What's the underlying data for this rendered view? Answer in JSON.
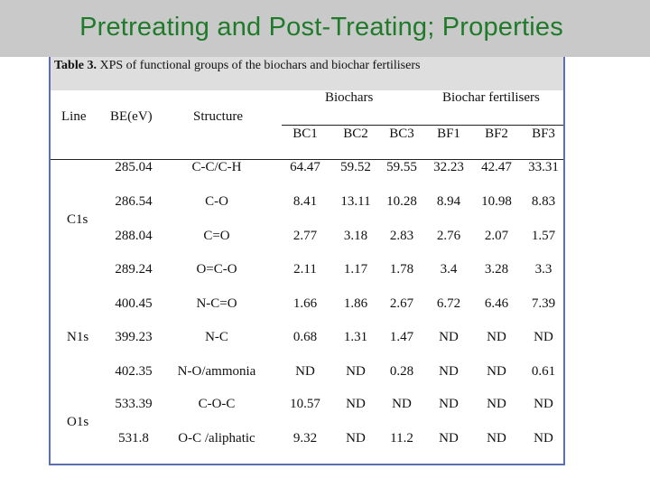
{
  "slide": {
    "title": "Pretreating and Post-Treating; Properties"
  },
  "table": {
    "caption_label": "Table 3.",
    "caption_text": " XPS of functional groups of the biochars and biochar fertilisers",
    "headers": {
      "line": "Line",
      "be": "BE(eV)",
      "structure": "Structure",
      "group_biochars": "Biochars",
      "group_fertilisers": "Biochar fertilisers",
      "sub": [
        "BC1",
        "BC2",
        "BC3",
        "BF1",
        "BF2",
        "BF3"
      ]
    },
    "line_labels": [
      "C1s",
      "N1s",
      "O1s"
    ],
    "rows": [
      {
        "be": "285.04",
        "structure": "C-C/C-H",
        "values": [
          "64.47",
          "59.52",
          "59.55",
          "32.23",
          "42.47",
          "33.31"
        ]
      },
      {
        "be": "286.54",
        "structure": "C-O",
        "values": [
          "8.41",
          "13.11",
          "10.28",
          "8.94",
          "10.98",
          "8.83"
        ]
      },
      {
        "be": "288.04",
        "structure": "C=O",
        "values": [
          "2.77",
          "3.18",
          "2.83",
          "2.76",
          "2.07",
          "1.57"
        ]
      },
      {
        "be": "289.24",
        "structure": "O=C-O",
        "values": [
          "2.11",
          "1.17",
          "1.78",
          "3.4",
          "3.28",
          "3.3"
        ]
      },
      {
        "be": "400.45",
        "structure": "N-C=O",
        "values": [
          "1.66",
          "1.86",
          "2.67",
          "6.72",
          "6.46",
          "7.39"
        ]
      },
      {
        "be": "399.23",
        "structure": "N-C",
        "values": [
          "0.68",
          "1.31",
          "1.47",
          "ND",
          "ND",
          "ND"
        ]
      },
      {
        "be": "402.35",
        "structure": "N-O/ammonia",
        "values": [
          "ND",
          "ND",
          "0.28",
          "ND",
          "ND",
          "0.61"
        ]
      },
      {
        "be": "533.39",
        "structure": "C-O-C",
        "values": [
          "10.57",
          "ND",
          "ND",
          "ND",
          "ND",
          "ND"
        ]
      },
      {
        "be": "531.8",
        "structure": "O-C /aliphatic",
        "values": [
          "9.32",
          "ND",
          "11.2",
          "ND",
          "ND",
          "ND"
        ]
      }
    ]
  }
}
